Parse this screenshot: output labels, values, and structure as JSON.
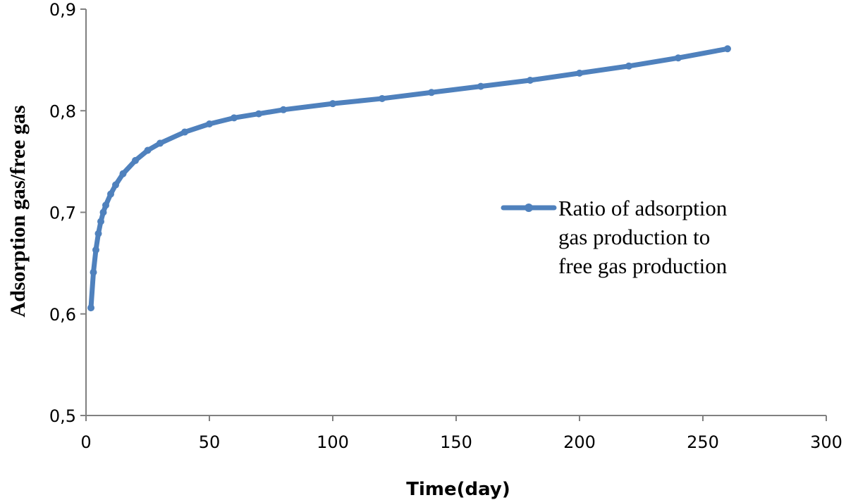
{
  "chart_data": {
    "type": "line",
    "title": "",
    "xlabel": "Time(day)",
    "ylabel": "Adsorption gas/free gas",
    "xlim": [
      0,
      300
    ],
    "ylim": [
      0.5,
      0.9
    ],
    "x_ticks": [
      "0",
      "50",
      "100",
      "150",
      "200",
      "250",
      "300"
    ],
    "y_ticks": [
      "0,5",
      "0,6",
      "0,7",
      "0,8",
      "0,9"
    ],
    "grid": false,
    "legend_position": "right",
    "series": [
      {
        "name": "Ratio of adsorption gas production to free gas production",
        "legend_lines": [
          "Ratio of adsorption",
          "gas production to",
          "free gas production"
        ],
        "color": "#4f81bd",
        "x": [
          2,
          3,
          4,
          5,
          6,
          7,
          8,
          10,
          12,
          15,
          20,
          25,
          30,
          40,
          50,
          60,
          70,
          80,
          100,
          120,
          140,
          160,
          180,
          200,
          220,
          240,
          260
        ],
        "y": [
          0.606,
          0.641,
          0.663,
          0.679,
          0.691,
          0.7,
          0.707,
          0.718,
          0.727,
          0.738,
          0.751,
          0.761,
          0.768,
          0.779,
          0.787,
          0.793,
          0.797,
          0.801,
          0.807,
          0.812,
          0.818,
          0.824,
          0.83,
          0.837,
          0.844,
          0.852,
          0.861
        ]
      }
    ]
  }
}
